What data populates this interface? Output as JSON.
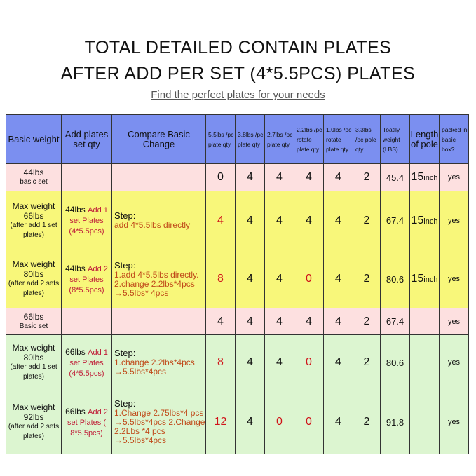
{
  "title_line1": "TOTAL DETAILED CONTAIN PLATES",
  "title_line2": "AFTER ADD PER SET (4*5.5PCS) PLATES",
  "subtitle": "Find the perfect plates for your needs",
  "headers": [
    "Basic weight",
    "Add plates set qty",
    "Compare Basic Change",
    "5.5lbs /pc plate qty",
    "3.8lbs /pc plate qty",
    "2.7lbs /pc plate qty",
    "2.2lbs /pc rotate plate qty",
    "1.0lbs /pc rotate plate qty",
    "3.3lbs /pc pole qty",
    "Toatlly weight (LBS)",
    "Length of pole",
    "packed in basic box?"
  ],
  "rows": [
    {
      "basic": "44lbs",
      "basic_sub": "basic set",
      "add": "",
      "add_red": "",
      "step_title": "",
      "steps": "",
      "q": [
        "0",
        "4",
        "4",
        "4",
        "4",
        "2"
      ],
      "total": "45.4",
      "pole": "15",
      "pole_unit": "inch",
      "packed": "yes"
    },
    {
      "basic": "Max weight 66lbs",
      "basic_sub": "(after add 1 set plates)",
      "add": "44lbs",
      "add_red": "Add 1 set Plates (4*5.5pcs)",
      "step_title": "Step:",
      "steps": "add 4*5.5lbs directly",
      "q": [
        "4",
        "4",
        "4",
        "4",
        "4",
        "2"
      ],
      "total": "67.4",
      "pole": "15",
      "pole_unit": "inch",
      "packed": "yes"
    },
    {
      "basic": "Max weight 80lbs",
      "basic_sub": "(after add 2 sets plates)",
      "add": "44lbs",
      "add_red": "Add 2 set Plates (8*5.5pcs)",
      "step_title": "Step:",
      "steps": "1.add 4*5.5lbs directly. 2.change 2.2lbs*4pcs →5.5lbs* 4pcs",
      "q": [
        "8",
        "4",
        "4",
        "0",
        "4",
        "2"
      ],
      "total": "80.6",
      "pole": "15",
      "pole_unit": "inch",
      "packed": "yes"
    },
    {
      "basic": "66lbs",
      "basic_sub": "Basic set",
      "add": "",
      "add_red": "",
      "step_title": "",
      "steps": "",
      "q": [
        "4",
        "4",
        "4",
        "4",
        "4",
        "2"
      ],
      "total": "67.4",
      "pole": "",
      "pole_unit": "",
      "packed": "yes"
    },
    {
      "basic": "Max weight 80lbs",
      "basic_sub": "(after add 1 set plates)",
      "add": "66lbs",
      "add_red": "Add 1 set Plates (4*5.5pcs)",
      "step_title": "Step:",
      "steps": "1.change 2.2lbs*4pcs →5.5lbs*4pcs",
      "q": [
        "8",
        "4",
        "4",
        "0",
        "4",
        "2"
      ],
      "total": "80.6",
      "pole": "",
      "pole_unit": "",
      "packed": "yes"
    },
    {
      "basic": "Max weight 92lbs",
      "basic_sub": "(after add 2 sets plates)",
      "add": "66lbs",
      "add_red": "Add 2 set Plates ( 8*5.5pcs)",
      "step_title": "Step:",
      "steps": "1.Change 2.75lbs*4 pcs →5.5lbs*4pcs 2.Change 2.2Lbs *4 pcs →5.5lbs*4pcs",
      "q": [
        "12",
        "4",
        "0",
        "0",
        "4",
        "2"
      ],
      "total": "91.8",
      "pole": "",
      "pole_unit": "",
      "packed": "yes"
    }
  ],
  "row_colors": {
    "pink": "#fde0e0",
    "yellow": "#f8f77a",
    "green": "#dcf5d0",
    "header": "#7b8ff0",
    "highlight": "#d0141a"
  }
}
